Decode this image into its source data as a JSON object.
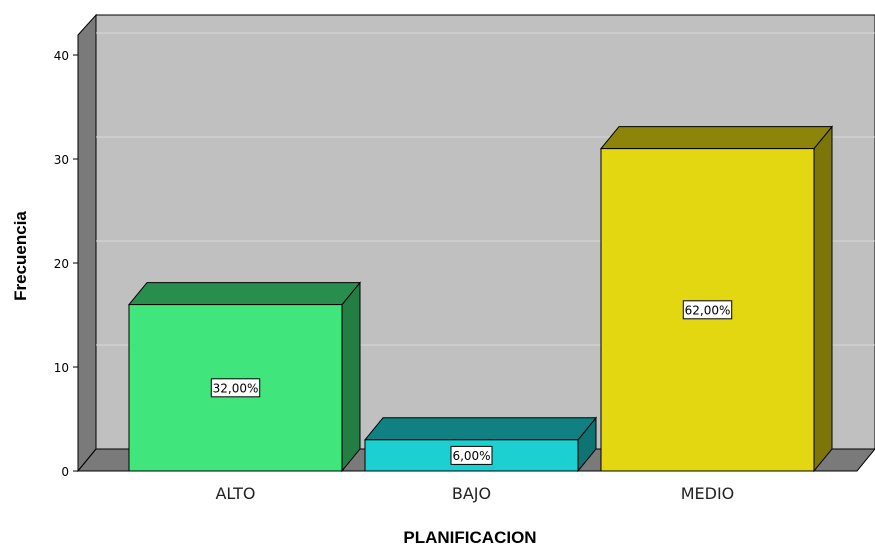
{
  "chart_data": {
    "type": "bar",
    "categories": [
      "ALTO",
      "BAJO",
      "MEDIO"
    ],
    "values": [
      16,
      3,
      31
    ],
    "data_labels": [
      "32,00%",
      "6,00%",
      "62,00%"
    ],
    "colors": [
      "#40e57c",
      "#1ccfd1",
      "#e2d710"
    ],
    "xlabel": "PLANIFICACION",
    "ylabel": "Frecuencia",
    "ylim": [
      0,
      40
    ],
    "yticks": [
      "0",
      "10",
      "20",
      "30",
      "40"
    ],
    "grid": true,
    "style": "3d"
  }
}
